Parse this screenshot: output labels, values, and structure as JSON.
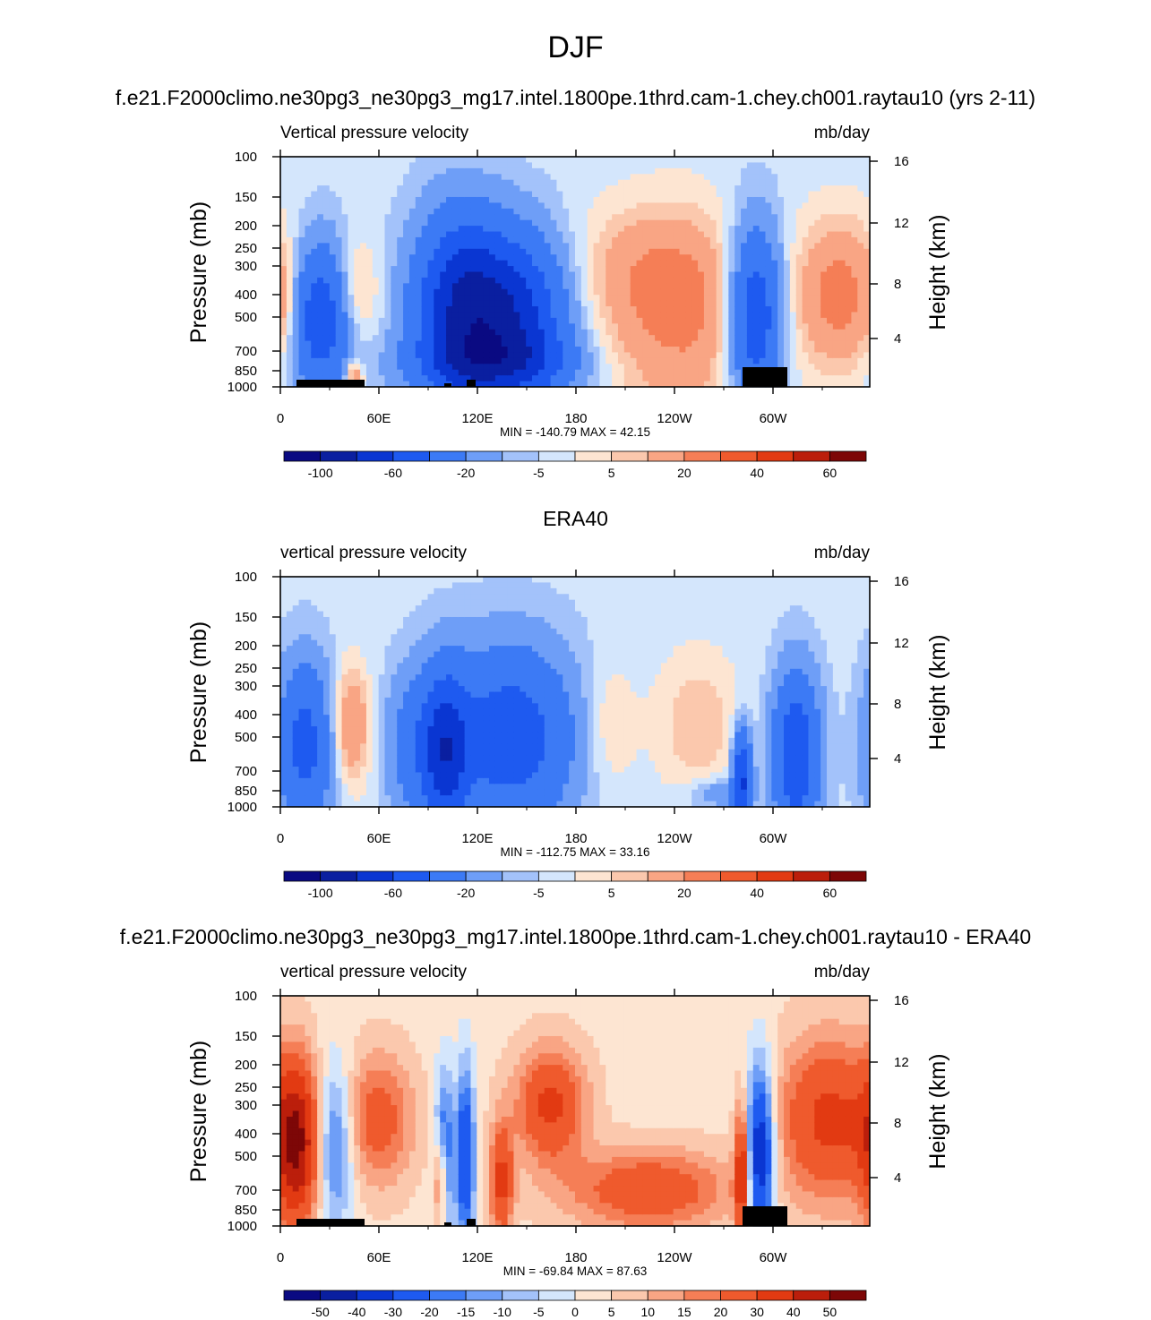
{
  "page": {
    "title": "DJF"
  },
  "chart_data": [
    {
      "type": "heatmap",
      "panel_title": "f.e21.F2000climo.ne30pg3_ne30pg3_mg17.intel.1800pe.1thrd.cam-1.chey.ch001.raytau10 (yrs 2-11)",
      "left_label": "Vertical pressure velocity",
      "right_label": "mb/day",
      "ylabel": "Pressure (mb)",
      "y2label": "Height (km)",
      "x_ticks": [
        "0",
        "60E",
        "120E",
        "180",
        "120W",
        "60W"
      ],
      "y_ticks": [
        "100",
        "150",
        "200",
        "250",
        "300",
        "400",
        "500",
        "700",
        "850",
        "1000"
      ],
      "y2_ticks": [
        "16",
        "12",
        "8",
        "4"
      ],
      "stats": "MIN = -140.79  MAX =  42.15",
      "colorbar_labels": [
        "-100",
        "-60",
        "-20",
        "-5",
        "5",
        "20",
        "40",
        "60"
      ],
      "features": [
        {
          "lon": 25,
          "p": 500,
          "v": -55,
          "w": 14,
          "h": 0.45
        },
        {
          "lon": 45,
          "p": 400,
          "v": 20,
          "w": 10,
          "h": 0.35
        },
        {
          "lon": 45,
          "p": 900,
          "v": 25,
          "w": 4,
          "h": 0.1
        },
        {
          "lon": 110,
          "p": 450,
          "v": -70,
          "w": 20,
          "h": 0.55
        },
        {
          "lon": 145,
          "p": 500,
          "v": -60,
          "w": 22,
          "h": 0.5
        },
        {
          "lon": 130,
          "p": 800,
          "v": -35,
          "w": 35,
          "h": 0.2
        },
        {
          "lon": 245,
          "p": 500,
          "v": 25,
          "w": 35,
          "h": 0.6
        },
        {
          "lon": 220,
          "p": 300,
          "v": 10,
          "w": 30,
          "h": 0.35
        },
        {
          "lon": 290,
          "p": 500,
          "v": -60,
          "w": 12,
          "h": 0.55
        },
        {
          "lon": 343,
          "p": 400,
          "v": 28,
          "w": 20,
          "h": 0.45
        },
        {
          "lon": 3,
          "p": 450,
          "v": 12,
          "w": 5,
          "h": 0.3
        }
      ]
    },
    {
      "type": "heatmap",
      "panel_title": "ERA40",
      "left_label": "vertical pressure velocity",
      "right_label": "mb/day",
      "ylabel": "Pressure (mb)",
      "y2label": "Height (km)",
      "x_ticks": [
        "0",
        "60E",
        "120E",
        "180",
        "120W",
        "60W"
      ],
      "y_ticks": [
        "100",
        "150",
        "200",
        "250",
        "300",
        "400",
        "500",
        "700",
        "850",
        "1000"
      ],
      "y2_ticks": [
        "16",
        "12",
        "8",
        "4"
      ],
      "stats": "MIN = -112.75  MAX =  33.16",
      "colorbar_labels": [
        "-100",
        "-60",
        "-20",
        "-5",
        "5",
        "20",
        "40",
        "60"
      ],
      "features": [
        {
          "lon": 15,
          "p": 550,
          "v": -45,
          "w": 12,
          "h": 0.5
        },
        {
          "lon": 43,
          "p": 450,
          "v": 25,
          "w": 8,
          "h": 0.35
        },
        {
          "lon": 100,
          "p": 600,
          "v": -60,
          "w": 10,
          "h": 0.5
        },
        {
          "lon": 140,
          "p": 500,
          "v": -50,
          "w": 28,
          "h": 0.55
        },
        {
          "lon": 200,
          "p": 450,
          "v": 10,
          "w": 12,
          "h": 0.4
        },
        {
          "lon": 255,
          "p": 450,
          "v": 12,
          "w": 18,
          "h": 0.45
        },
        {
          "lon": 282,
          "p": 750,
          "v": -60,
          "w": 4,
          "h": 0.3
        },
        {
          "lon": 315,
          "p": 600,
          "v": -55,
          "w": 10,
          "h": 0.5
        },
        {
          "lon": 265,
          "p": 880,
          "v": -15,
          "w": 12,
          "h": 0.1
        },
        {
          "lon": 78,
          "p": 550,
          "v": -20,
          "w": 10,
          "h": 0.45
        }
      ]
    },
    {
      "type": "heatmap",
      "panel_title": "f.e21.F2000climo.ne30pg3_ne30pg3_mg17.intel.1800pe.1thrd.cam-1.chey.ch001.raytau10 - ERA40",
      "left_label": "vertical pressure velocity",
      "right_label": "mb/day",
      "ylabel": "Pressure (mb)",
      "y2label": "Height (km)",
      "x_ticks": [
        "0",
        "60E",
        "120E",
        "180",
        "120W",
        "60W"
      ],
      "y_ticks": [
        "100",
        "150",
        "200",
        "250",
        "300",
        "400",
        "500",
        "700",
        "850",
        "1000"
      ],
      "y2_ticks": [
        "16",
        "12",
        "8",
        "4"
      ],
      "stats": "MIN = -69.84  MAX =  87.63",
      "colorbar_labels": [
        "-50",
        "-40",
        "-30",
        "-20",
        "-15",
        "-10",
        "-5",
        "0",
        "5",
        "10",
        "15",
        "20",
        "30",
        "40",
        "50"
      ],
      "features": [
        {
          "lon": 10,
          "p": 450,
          "v": 45,
          "w": 10,
          "h": 0.5
        },
        {
          "lon": 33,
          "p": 450,
          "v": -25,
          "w": 8,
          "h": 0.5
        },
        {
          "lon": 60,
          "p": 350,
          "v": 22,
          "w": 15,
          "h": 0.4
        },
        {
          "lon": 100,
          "p": 500,
          "v": -30,
          "w": 4,
          "h": 0.5
        },
        {
          "lon": 98,
          "p": 650,
          "v": 30,
          "w": 3,
          "h": 0.3
        },
        {
          "lon": 113,
          "p": 500,
          "v": -35,
          "w": 4,
          "h": 0.55
        },
        {
          "lon": 135,
          "p": 650,
          "v": 30,
          "w": 5,
          "h": 0.35
        },
        {
          "lon": 165,
          "p": 300,
          "v": 30,
          "w": 15,
          "h": 0.35
        },
        {
          "lon": 225,
          "p": 700,
          "v": 25,
          "w": 35,
          "h": 0.25
        },
        {
          "lon": 282,
          "p": 600,
          "v": 40,
          "w": 3,
          "h": 0.4
        },
        {
          "lon": 293,
          "p": 500,
          "v": -45,
          "w": 6,
          "h": 0.55
        },
        {
          "lon": 335,
          "p": 350,
          "v": 30,
          "w": 22,
          "h": 0.5
        }
      ]
    }
  ]
}
